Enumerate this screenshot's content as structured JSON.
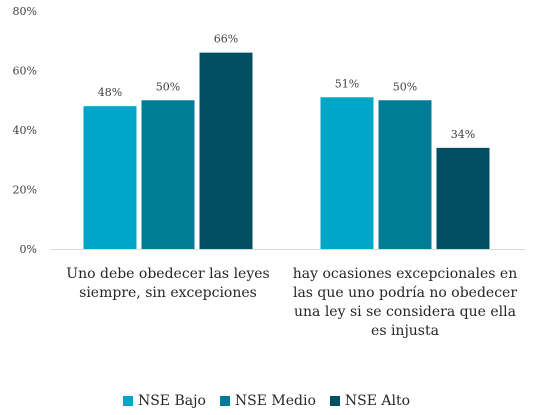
{
  "chart_data": {
    "type": "bar",
    "categories": [
      [
        "Uno debe obedecer las leyes",
        "siempre, sin excepciones"
      ],
      [
        "hay ocasiones excepcionales en",
        "las que uno podría no obedecer",
        "una ley si se considera que ella",
        "es injusta"
      ]
    ],
    "series": [
      {
        "name": "NSE Bajo",
        "values": [
          48,
          51
        ],
        "labels": [
          "48%",
          "51%"
        ],
        "color": "#00A6C8"
      },
      {
        "name": "NSE Medio",
        "values": [
          50,
          50
        ],
        "labels": [
          "50%",
          "50%"
        ],
        "color": "#007C96"
      },
      {
        "name": "NSE Alto",
        "values": [
          66,
          34
        ],
        "labels": [
          "66%",
          "34%"
        ],
        "color": "#004F62"
      }
    ],
    "y_ticks": [
      {
        "value": 0,
        "label": "0%"
      },
      {
        "value": 20,
        "label": "20%"
      },
      {
        "value": 40,
        "label": "40%"
      },
      {
        "value": 60,
        "label": "60%"
      },
      {
        "value": 80,
        "label": "80%"
      }
    ],
    "ylim": [
      0,
      80
    ],
    "grid": false,
    "legend_position": "bottom"
  }
}
